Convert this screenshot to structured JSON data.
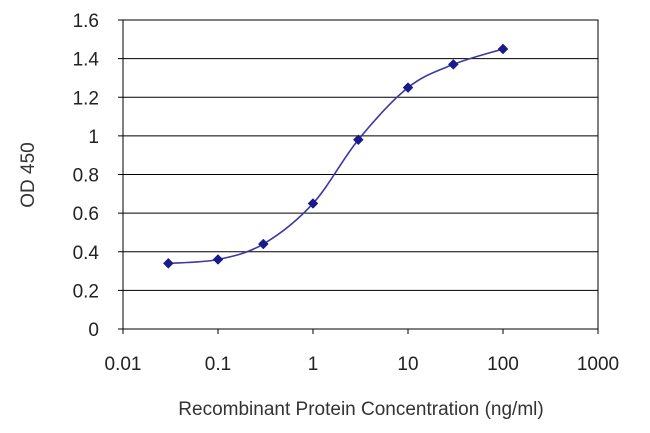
{
  "chart_data": {
    "type": "scatter",
    "xscale": "log",
    "xlabel": "Recombinant Protein Concentration (ng/ml)",
    "ylabel": "OD 450",
    "xlim": [
      0.01,
      1000
    ],
    "ylim": [
      0,
      1.6
    ],
    "x_ticks": [
      "0.01",
      "0.1",
      "1",
      "10",
      "100",
      "1000"
    ],
    "y_ticks": [
      "0",
      "0.2",
      "0.4",
      "0.6",
      "0.8",
      "1",
      "1.2",
      "1.4",
      "1.6"
    ],
    "grid": "horizontal",
    "legend": "none",
    "series": [
      {
        "x": [
          0.03,
          0.1,
          0.3,
          1,
          3,
          10,
          30,
          100
        ],
        "y": [
          0.34,
          0.36,
          0.44,
          0.65,
          0.98,
          1.25,
          1.37,
          1.45
        ],
        "color": "#1a1a8c",
        "marker": "diamond",
        "line": "smooth"
      }
    ]
  }
}
